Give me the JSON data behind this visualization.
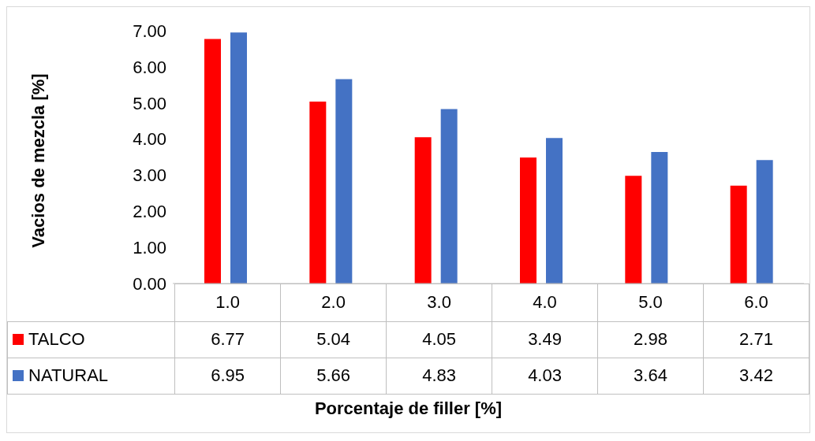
{
  "chart_data": {
    "type": "bar",
    "xlabel": "Porcentaje de filler [%]",
    "ylabel": "Vacios de mezcla [%]",
    "categories": [
      "1.0",
      "2.0",
      "3.0",
      "4.0",
      "5.0",
      "6.0"
    ],
    "series": [
      {
        "name": "TALCO",
        "color": "#ff0000",
        "values": [
          6.77,
          5.04,
          4.05,
          3.49,
          2.98,
          2.71
        ]
      },
      {
        "name": "NATURAL",
        "color": "#4472c4",
        "values": [
          6.95,
          5.66,
          4.83,
          4.03,
          3.64,
          3.42
        ]
      }
    ],
    "ylim": [
      0,
      7
    ],
    "yticks": [
      {
        "value": 0,
        "label": "0.00"
      },
      {
        "value": 1,
        "label": "1.00"
      },
      {
        "value": 2,
        "label": "2.00"
      },
      {
        "value": 3,
        "label": "3.00"
      },
      {
        "value": 4,
        "label": "4.00"
      },
      {
        "value": 5,
        "label": "5.00"
      },
      {
        "value": 6,
        "label": "6.00"
      },
      {
        "value": 7,
        "label": "7.00"
      }
    ],
    "grid": false,
    "legend": "bottom",
    "data_labels": true
  }
}
